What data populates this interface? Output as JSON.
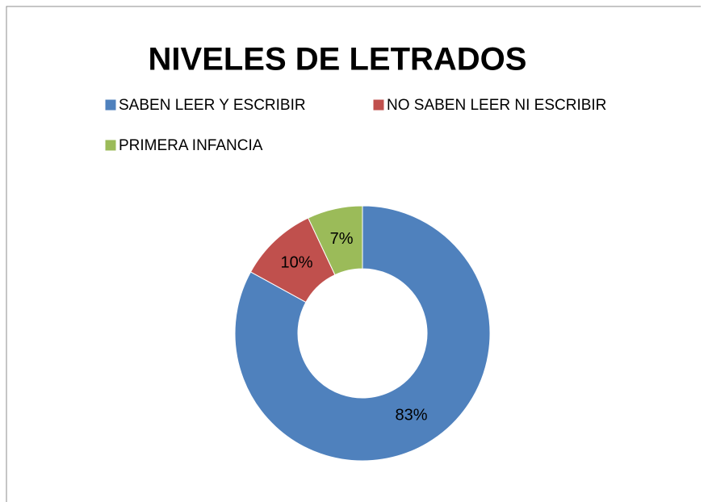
{
  "chart_data": {
    "type": "donut",
    "title": "NIVELES DE LETRADOS",
    "categories": [
      "SABEN LEER Y ESCRIBIR",
      "NO SABEN LEER NI ESCRIBIR",
      "PRIMERA INFANCIA"
    ],
    "values": [
      83,
      10,
      7
    ],
    "value_labels": [
      "83%",
      "10%",
      "7%"
    ],
    "colors": [
      "#4f81bd",
      "#c0504d",
      "#9bbb59"
    ]
  }
}
